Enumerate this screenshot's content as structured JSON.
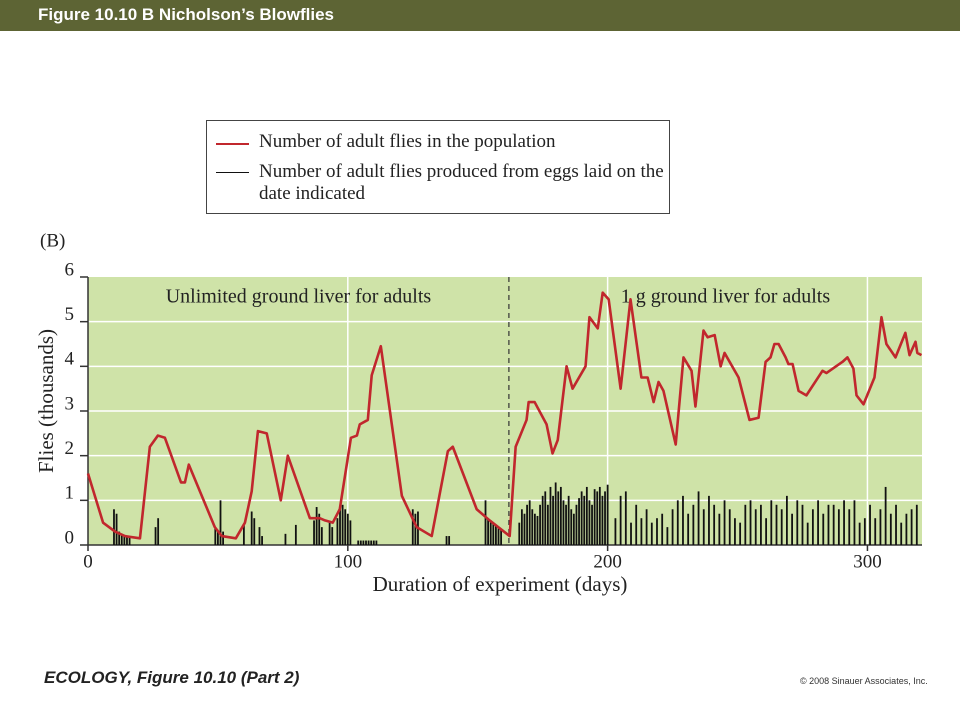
{
  "header": {
    "title": "Figure 10.10 B  Nicholson’s Blowflies"
  },
  "chart_data": {
    "type": "line",
    "panel_label": "(B)",
    "annotations": [
      "Unlimited ground liver for adults",
      "1 g ground liver for adults"
    ],
    "divider_x": 162,
    "xlabel": "Duration of experiment (days)",
    "ylabel": "Flies (thousands)",
    "xlim": [
      0,
      321
    ],
    "xticks": [
      0,
      100,
      200,
      300
    ],
    "ylim": [
      0,
      6
    ],
    "yticks": [
      0,
      1,
      2,
      3,
      4,
      5,
      6
    ],
    "series": [
      {
        "name": "Number of adult flies in the population",
        "color": "#c1272d",
        "kind": "line",
        "x": [
          0,
          5.8,
          10.4,
          14.2,
          20,
          23.8,
          26.9,
          29.6,
          35.8,
          37.3,
          38.8,
          48.8,
          51.5,
          56.9,
          60.4,
          63,
          65.4,
          68.8,
          74.2,
          76.9,
          85.4,
          89.2,
          91.2,
          94.2,
          96.9,
          101.2,
          103.5,
          104.6,
          107.7,
          109.2,
          112.7,
          120.8,
          126.5,
          132.3,
          138.5,
          140.4,
          149.6,
          154.6,
          162.3,
          164.6,
          168.8,
          169.6,
          171.9,
          176.5,
          178.8,
          180.8,
          184.2,
          186.5,
          191.5,
          193,
          196.2,
          198.1,
          200.4,
          205,
          208.8,
          213,
          215.4,
          217.7,
          219.6,
          221.5,
          226.2,
          229.2,
          232.3,
          233.8,
          236.9,
          238.5,
          241.2,
          243.5,
          245,
          250.4,
          254.6,
          258.1,
          260.8,
          262.7,
          264.2,
          265.8,
          268.5,
          269.6,
          271.2,
          273.5,
          276.5,
          282.7,
          284.2,
          290.4,
          292.3,
          294.6,
          295.8,
          298.5,
          302.7,
          305.4,
          307.3,
          310.8,
          314.6,
          316.2,
          318.5,
          319.2,
          320.8
        ],
        "values": [
          1.6,
          0.5,
          0.3,
          0.2,
          0.15,
          2.2,
          2.45,
          2.4,
          1.4,
          1.4,
          1.8,
          0.4,
          0.2,
          0.15,
          0.5,
          1.2,
          2.55,
          2.5,
          1.0,
          2.0,
          0.6,
          0.6,
          0.55,
          0.5,
          0.8,
          2.4,
          2.45,
          2.7,
          2.8,
          3.8,
          4.45,
          1.1,
          0.4,
          0.2,
          2.1,
          2.2,
          0.8,
          0.55,
          0.2,
          2.2,
          2.8,
          3.2,
          3.2,
          2.7,
          2.05,
          2.35,
          4.0,
          3.5,
          4.0,
          5.1,
          4.85,
          5.65,
          5.5,
          3.5,
          5.5,
          3.75,
          3.75,
          3.2,
          3.65,
          3.45,
          2.25,
          4.2,
          3.9,
          3.1,
          4.8,
          4.65,
          4.7,
          4.0,
          4.3,
          3.75,
          2.8,
          2.85,
          4.1,
          4.2,
          4.5,
          4.5,
          4.2,
          4.05,
          4.05,
          3.45,
          3.35,
          3.9,
          3.85,
          4.1,
          4.2,
          3.95,
          3.35,
          3.15,
          3.75,
          5.1,
          4.5,
          4.2,
          4.75,
          4.25,
          4.55,
          4.3,
          4.25
        ]
      },
      {
        "name": "Number of adult flies produced from eggs laid on the date indicated",
        "color": "#111111",
        "kind": "bar",
        "x": [
          10,
          11,
          12,
          13,
          14,
          15,
          16,
          26,
          27,
          49,
          50,
          51,
          52,
          60,
          63,
          64,
          66,
          67,
          76,
          80,
          87,
          88,
          89,
          90,
          93,
          94,
          96,
          97,
          98,
          99,
          100,
          101,
          104,
          105,
          106,
          107,
          108,
          109,
          110,
          111,
          125,
          126,
          127,
          138,
          139,
          153,
          154,
          155,
          156,
          157,
          158,
          159,
          166,
          167,
          168,
          169,
          170,
          171,
          172,
          173,
          174,
          175,
          176,
          177,
          178,
          179,
          180,
          181,
          182,
          183,
          184,
          185,
          186,
          187,
          188,
          189,
          190,
          191,
          192,
          193,
          194,
          195,
          196,
          197,
          198,
          199,
          200,
          203,
          205,
          207,
          209,
          211,
          213,
          215,
          217,
          219,
          221,
          223,
          225,
          227,
          229,
          231,
          233,
          235,
          237,
          239,
          241,
          243,
          245,
          247,
          249,
          251,
          253,
          255,
          257,
          259,
          261,
          263,
          265,
          267,
          269,
          271,
          273,
          275,
          277,
          279,
          281,
          283,
          285,
          287,
          289,
          291,
          293,
          295,
          297,
          299,
          301,
          303,
          305,
          307,
          309,
          311,
          313,
          315,
          317,
          319
        ],
        "values": [
          0.8,
          0.7,
          0.3,
          0.25,
          0.2,
          0.2,
          0.2,
          0.4,
          0.6,
          0.4,
          0.3,
          1.0,
          0.3,
          0.45,
          0.75,
          0.6,
          0.4,
          0.2,
          0.25,
          0.45,
          0.55,
          0.85,
          0.7,
          0.4,
          0.5,
          0.4,
          0.6,
          0.8,
          0.9,
          0.8,
          0.7,
          0.55,
          0.1,
          0.1,
          0.1,
          0.1,
          0.1,
          0.1,
          0.1,
          0.1,
          0.8,
          0.7,
          0.75,
          0.2,
          0.2,
          1.0,
          0.6,
          0.55,
          0.5,
          0.45,
          0.4,
          0.35,
          0.5,
          0.8,
          0.7,
          0.9,
          1.0,
          0.8,
          0.7,
          0.65,
          0.9,
          1.1,
          1.2,
          0.9,
          1.3,
          1.1,
          1.4,
          1.2,
          1.3,
          1.0,
          0.9,
          1.1,
          0.8,
          0.7,
          0.9,
          1.05,
          1.2,
          1.1,
          1.3,
          1.0,
          0.9,
          1.25,
          1.2,
          1.3,
          1.1,
          1.2,
          1.35,
          0.6,
          1.1,
          1.2,
          0.5,
          0.9,
          0.6,
          0.8,
          0.5,
          0.6,
          0.7,
          0.4,
          0.8,
          1.0,
          1.1,
          0.7,
          0.9,
          1.2,
          0.8,
          1.1,
          0.9,
          0.7,
          1.0,
          0.8,
          0.6,
          0.5,
          0.9,
          1.0,
          0.8,
          0.9,
          0.6,
          1.0,
          0.9,
          0.8,
          1.1,
          0.7,
          1.0,
          0.9,
          0.5,
          0.8,
          1.0,
          0.7,
          0.9,
          0.9,
          0.8,
          1.0,
          0.8,
          1.0,
          0.5,
          0.6,
          0.9,
          0.6,
          0.8,
          1.3,
          0.7,
          0.9,
          0.5,
          0.7,
          0.8,
          0.9
        ]
      }
    ]
  },
  "footer": {
    "caption": "ECOLOGY, Figure 10.10 (Part 2)",
    "copyright": "© 2008 Sinauer Associates, Inc."
  }
}
